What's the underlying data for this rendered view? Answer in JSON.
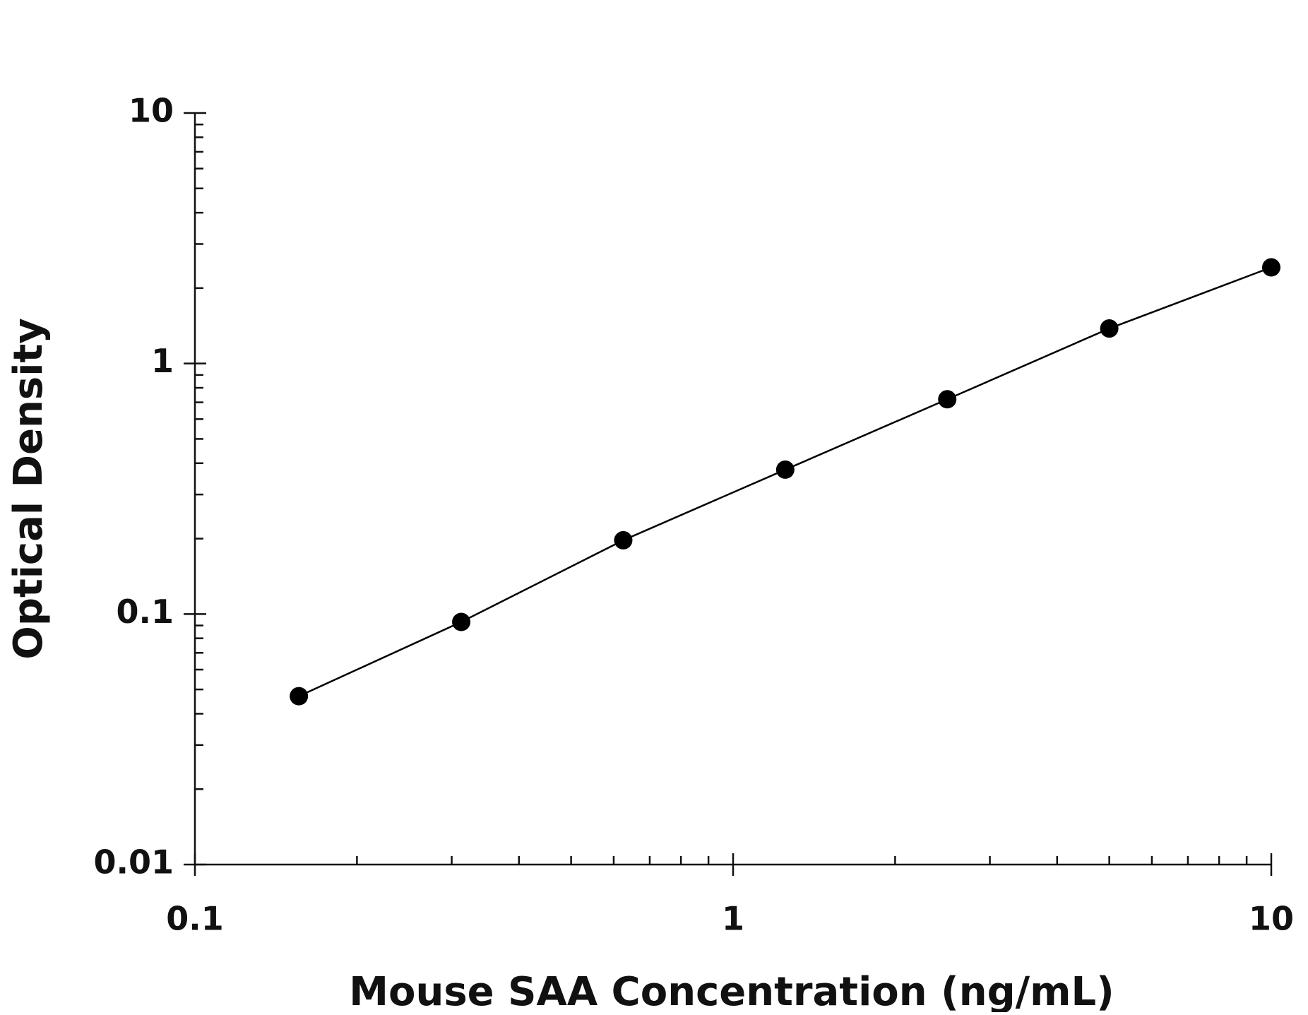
{
  "chart_data": {
    "type": "scatter",
    "x_label": "Mouse SAA Concentration (ng/mL)",
    "y_label": "Optical Density",
    "log_x": true,
    "log_y": true,
    "xlim": [
      0.1,
      10
    ],
    "xticks": [
      0.1,
      1,
      10
    ],
    "ylim": [
      0.01,
      10
    ],
    "yticks": [
      0.01,
      0.1,
      1,
      10
    ],
    "color": "#000000",
    "fit_line": true,
    "x": [
      0.156,
      0.3125,
      0.625,
      1.25,
      2.5,
      5,
      10
    ],
    "values": [
      0.047,
      0.093,
      0.197,
      0.377,
      0.72,
      1.38,
      2.42
    ]
  }
}
